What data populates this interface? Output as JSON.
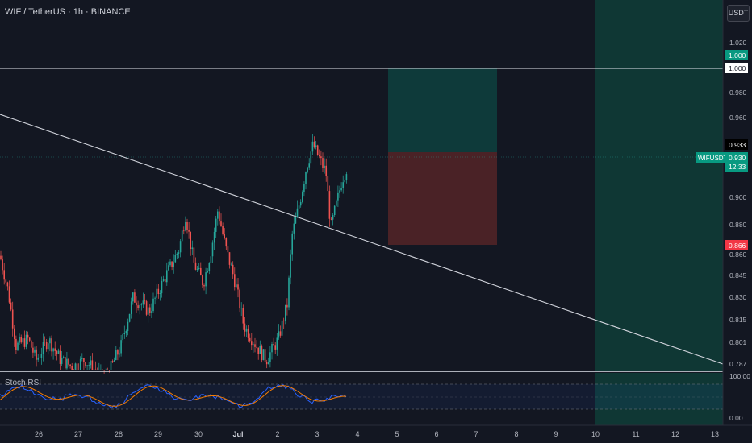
{
  "header": {
    "symbol_title": "WIF / TetherUS · 1h · BINANCE"
  },
  "currency_button": {
    "label": "USDT"
  },
  "colors": {
    "background": "#131722",
    "up": "#26a69a",
    "down": "#ef5350",
    "profit_zone": "#0e3a3a",
    "loss_zone": "#4a2226",
    "future_zone": "#0f3b36",
    "rsi_k": "#2962ff",
    "rsi_d": "#f57c00",
    "axis_text": "#b2b5be"
  },
  "price_axis": {
    "ticks": [
      "1.020",
      "0.980",
      "0.960",
      "0.933",
      "0.900",
      "0.880",
      "0.860",
      "0.845",
      "0.830",
      "0.815",
      "0.801",
      "0.787"
    ],
    "tick_values": [
      1.02,
      0.98,
      0.96,
      0.933,
      0.9,
      0.88,
      0.86,
      0.845,
      0.83,
      0.815,
      0.801,
      0.787
    ]
  },
  "price_labels": {
    "target_top": "1.000",
    "target_line": "1.000",
    "entry": "0.933",
    "symbol_badge": "WIFUSDT",
    "current_price": "0.930",
    "countdown": "12:33",
    "stop_loss": "0.866"
  },
  "time_axis": {
    "labels": [
      "26",
      "27",
      "28",
      "29",
      "30",
      "Jul",
      "2",
      "3",
      "4",
      "5",
      "6",
      "7",
      "8",
      "9",
      "10",
      "11",
      "12",
      "13"
    ]
  },
  "rsi_panel": {
    "label": "Stoch RSI",
    "upper_label": "100.00",
    "lower_label": "0.00"
  },
  "chart_data": {
    "type": "candlestick",
    "symbol": "WIFUSDT",
    "interval": "1h",
    "exchange": "BINANCE",
    "current_price": 0.93,
    "resistance_level": 1.0,
    "trendline": [
      {
        "x": "Jun 25",
        "y": 0.96
      },
      {
        "x": "Jul 13",
        "y": 0.787
      }
    ],
    "position": {
      "entry": 0.933,
      "target": 1.0,
      "stop": 0.866
    },
    "price_path": [
      {
        "x": "Jun 25",
        "y": 0.86
      },
      {
        "x": "Jun 25.5",
        "y": 0.8
      },
      {
        "x": "Jun 26",
        "y": 0.79
      },
      {
        "x": "Jun 26.5",
        "y": 0.8
      },
      {
        "x": "Jun 27",
        "y": 0.78
      },
      {
        "x": "Jun 27.5",
        "y": 0.77
      },
      {
        "x": "Jun 28",
        "y": 0.79
      },
      {
        "x": "Jun 28.5",
        "y": 0.83
      },
      {
        "x": "Jun 29",
        "y": 0.84
      },
      {
        "x": "Jun 29.5",
        "y": 0.9
      },
      {
        "x": "Jun 30",
        "y": 0.85
      },
      {
        "x": "Jun 30.5",
        "y": 0.86
      },
      {
        "x": "Jun 30.6",
        "y": 0.9
      },
      {
        "x": "Jun 30.8",
        "y": 0.84
      },
      {
        "x": "Jul 1",
        "y": 0.82
      },
      {
        "x": "Jul 1.5",
        "y": 0.79
      },
      {
        "x": "Jul 2",
        "y": 0.82
      },
      {
        "x": "Jul 2.3",
        "y": 0.88
      },
      {
        "x": "Jul 2.7",
        "y": 0.93
      },
      {
        "x": "Jul 3",
        "y": 0.95
      },
      {
        "x": "Jul 3.3",
        "y": 0.9
      },
      {
        "x": "Jul 3.4",
        "y": 0.87
      },
      {
        "x": "Jul 3.7",
        "y": 0.93
      }
    ]
  }
}
